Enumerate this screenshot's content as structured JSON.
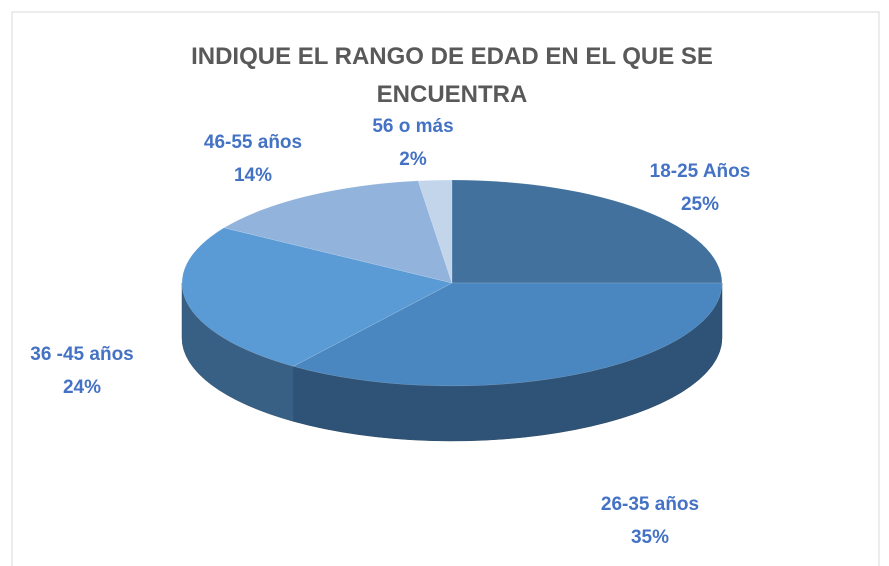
{
  "chart_data": {
    "type": "pie",
    "title": "INDIQUE EL RANGO DE EDAD EN EL QUE SE ENCUENTRA",
    "categories": [
      "18-25 Años",
      "26-35 años",
      "36 -45 años",
      "46-55 años",
      "56 o más"
    ],
    "values": [
      25,
      35,
      24,
      14,
      2
    ],
    "value_labels": [
      "25%",
      "35%",
      "24%",
      "14%",
      "2%"
    ],
    "colors": [
      "#41719c",
      "#4a86bf",
      "#5b9bd5",
      "#92b4dc",
      "#c3d5ea"
    ]
  }
}
